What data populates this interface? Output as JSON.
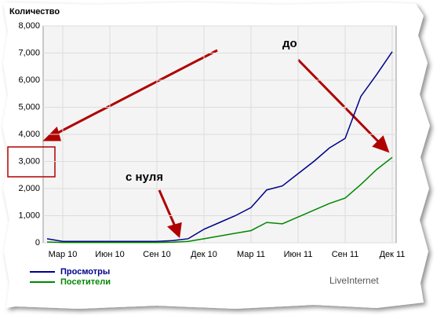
{
  "chart_data": {
    "type": "line",
    "ylabel": "Количество",
    "categories": [
      null,
      "Мар 10",
      null,
      null,
      "Июн 10",
      null,
      null,
      "Сен 10",
      null,
      null,
      "Дек 10",
      null,
      null,
      "Мар 11",
      null,
      null,
      "Июн 11",
      null,
      null,
      "Сен 11",
      null,
      null,
      "Дек 11"
    ],
    "series": [
      {
        "name": "Просмотры",
        "color": "#00008b",
        "values": [
          150,
          50,
          50,
          50,
          50,
          50,
          50,
          50,
          80,
          150,
          500,
          750,
          1000,
          1300,
          1950,
          2100,
          2550,
          3000,
          3500,
          3850,
          5400,
          6200,
          7050
        ]
      },
      {
        "name": "Посетители",
        "color": "#008800",
        "values": [
          30,
          10,
          10,
          10,
          10,
          10,
          10,
          10,
          20,
          50,
          150,
          250,
          350,
          450,
          750,
          700,
          950,
          1200,
          1450,
          1650,
          2150,
          2700,
          3150
        ]
      }
    ],
    "ylim": [
      0,
      8000
    ],
    "yticks": [
      0,
      {
        "value": 1000,
        "label": "1,000"
      },
      {
        "value": 2000,
        "label": "2,000"
      },
      {
        "value": 3000,
        "label": "3,000"
      },
      {
        "value": 4000,
        "label": "4,000"
      },
      {
        "value": 5000,
        "label": "5,000"
      },
      {
        "value": 6000,
        "label": "6,000"
      },
      {
        "value": 7000,
        "label": "7,000"
      },
      {
        "value": 8000,
        "label": "8,000"
      }
    ],
    "grid": true,
    "annotations": [
      "до",
      "с нуля"
    ],
    "source": "LiveInternet"
  }
}
